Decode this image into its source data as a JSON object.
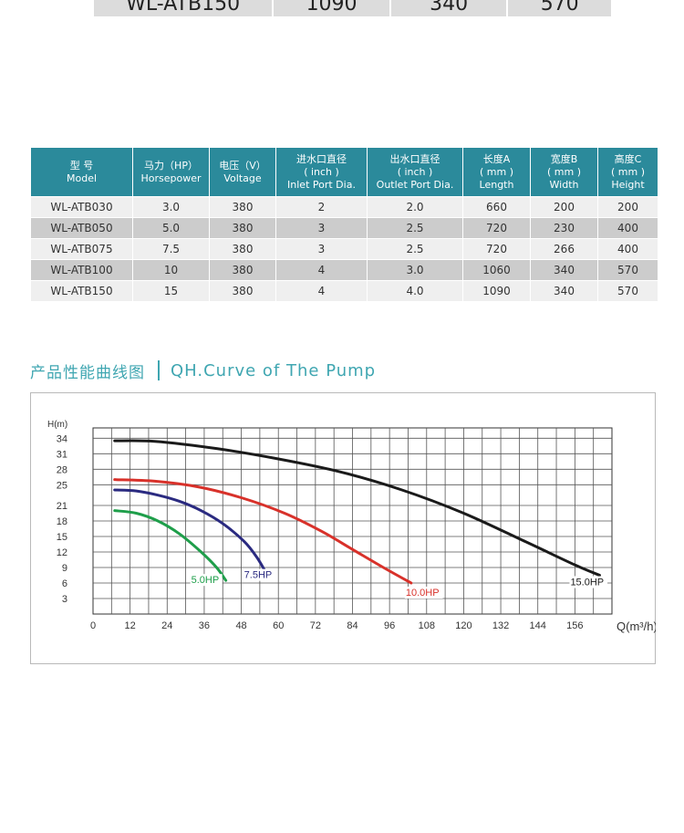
{
  "top_row": [
    "WL-ATB150",
    "1090",
    "340",
    "570"
  ],
  "table": {
    "headers": [
      {
        "cn": "型  号",
        "en": "Model"
      },
      {
        "cn": "马力（HP）",
        "en": "Horsepower"
      },
      {
        "cn": "电压（V）",
        "en": "Voltage"
      },
      {
        "cn": "进水口直径",
        "unit": "( inch )",
        "en": "Inlet Port Dia."
      },
      {
        "cn": "出水口直径",
        "unit": "( inch )",
        "en": "Outlet Port Dia."
      },
      {
        "cn": "长度A",
        "unit": "( mm )",
        "en": "Length"
      },
      {
        "cn": "宽度B",
        "unit": "( mm )",
        "en": "Width"
      },
      {
        "cn": "高度C",
        "unit": "( mm )",
        "en": "Height"
      }
    ],
    "rows": [
      [
        "WL-ATB030",
        "3.0",
        "380",
        "2",
        "2.0",
        "660",
        "200",
        "200"
      ],
      [
        "WL-ATB050",
        "5.0",
        "380",
        "3",
        "2.5",
        "720",
        "230",
        "400"
      ],
      [
        "WL-ATB075",
        "7.5",
        "380",
        "3",
        "2.5",
        "720",
        "266",
        "400"
      ],
      [
        "WL-ATB100",
        "10",
        "380",
        "4",
        "3.0",
        "1060",
        "340",
        "570"
      ],
      [
        "WL-ATB150",
        "15",
        "380",
        "4",
        "4.0",
        "1090",
        "340",
        "570"
      ]
    ]
  },
  "section": {
    "title_cn": "产品性能曲线图",
    "title_en": "QH.Curve of The Pump"
  },
  "chart_data": {
    "type": "line",
    "xlabel": "Q(m³/h)",
    "ylabel": "H(m)",
    "xlim": [
      0,
      168
    ],
    "ylim": [
      0,
      36
    ],
    "xticks": [
      0,
      12,
      24,
      36,
      48,
      60,
      72,
      84,
      96,
      108,
      120,
      132,
      144,
      156
    ],
    "yticks": [
      3,
      6,
      9,
      12,
      15,
      18,
      21,
      25,
      28,
      31,
      34
    ],
    "grid": true,
    "series": [
      {
        "name": "5.0HP",
        "color": "#1e9e4a",
        "x": [
          7,
          14,
          21,
          28,
          35,
          40,
          43
        ],
        "y": [
          20,
          19.5,
          18,
          15.5,
          12,
          9,
          6.5
        ]
      },
      {
        "name": "7.5HP",
        "color": "#2a2a80",
        "x": [
          7,
          14,
          21,
          28,
          35,
          42,
          49,
          53,
          56
        ],
        "y": [
          24,
          23.8,
          23,
          21.8,
          20,
          17.5,
          14,
          11,
          8
        ]
      },
      {
        "name": "10.0HP",
        "color": "#d8312a",
        "x": [
          7,
          20,
          34,
          48,
          62,
          74,
          84,
          94,
          103
        ],
        "y": [
          26,
          25.7,
          24.6,
          22.5,
          19.5,
          16,
          12.5,
          9,
          6
        ]
      },
      {
        "name": "15.0HP",
        "color": "#1a1a1a",
        "x": [
          7,
          20,
          40,
          60,
          80,
          100,
          120,
          140,
          156,
          164
        ],
        "y": [
          33.5,
          33.4,
          32,
          30,
          27.5,
          24,
          19.5,
          14,
          9.5,
          7.5
        ]
      }
    ]
  }
}
